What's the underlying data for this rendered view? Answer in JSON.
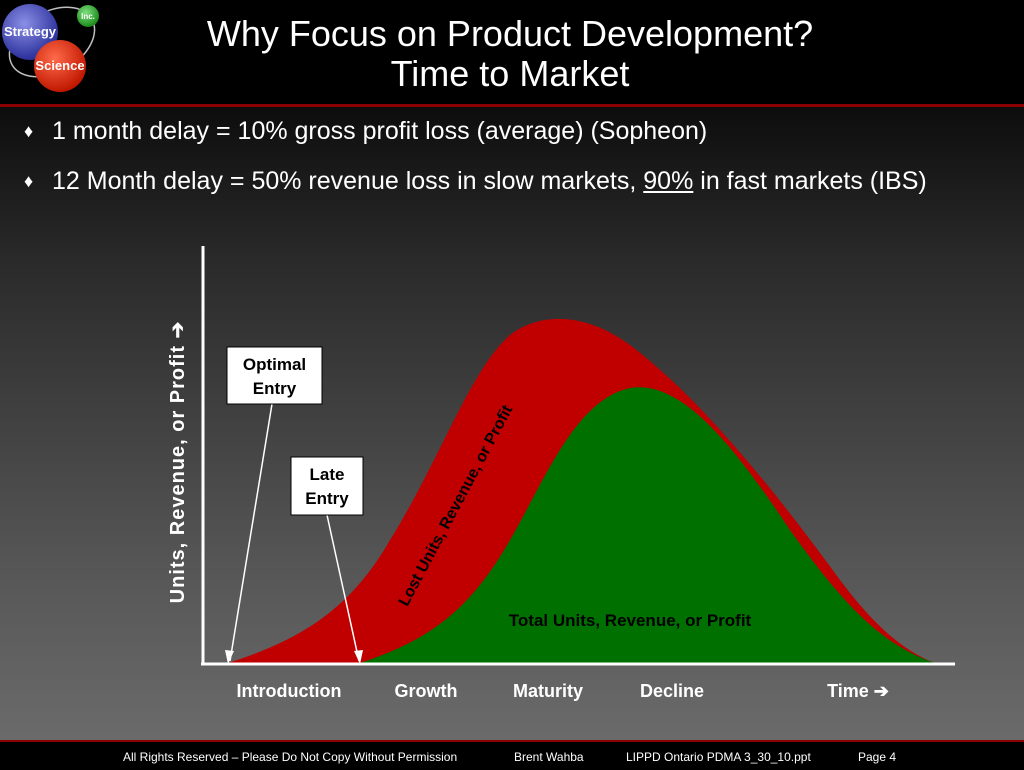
{
  "logo": {
    "line1": "Strategy",
    "line2": "Science",
    "badge": "Inc."
  },
  "title": {
    "line1": "Why Focus on Product Development?",
    "line2": "Time to Market"
  },
  "bullets": {
    "b1": "1 month delay = 10% gross profit loss (average) (Sopheon)",
    "b2_pre": "12 Month delay = 50% revenue loss in slow markets, ",
    "b2_u": "90%",
    "b2_post": " in fast markets (IBS)"
  },
  "chart_data": {
    "type": "area",
    "ylabel": "Units, Revenue, or Profit ➔",
    "stages": [
      "Introduction",
      "Growth",
      "Maturity",
      "Decline",
      "Time ➔"
    ],
    "series": [
      {
        "name": "Lost Units, Revenue, or Profit",
        "color": "#c00000"
      },
      {
        "name": "Total Units, Revenue, or Profit",
        "color": "#007000"
      }
    ],
    "callouts": {
      "optimal": [
        "Optimal",
        "Entry"
      ],
      "late": [
        "Late",
        "Entry"
      ]
    }
  },
  "footer": {
    "rights": "All Rights Reserved – Please Do Not Copy Without Permission",
    "author": "Brent Wahba",
    "file": "LIPPD Ontario PDMA 3_30_10.ppt",
    "page": "Page 4"
  }
}
